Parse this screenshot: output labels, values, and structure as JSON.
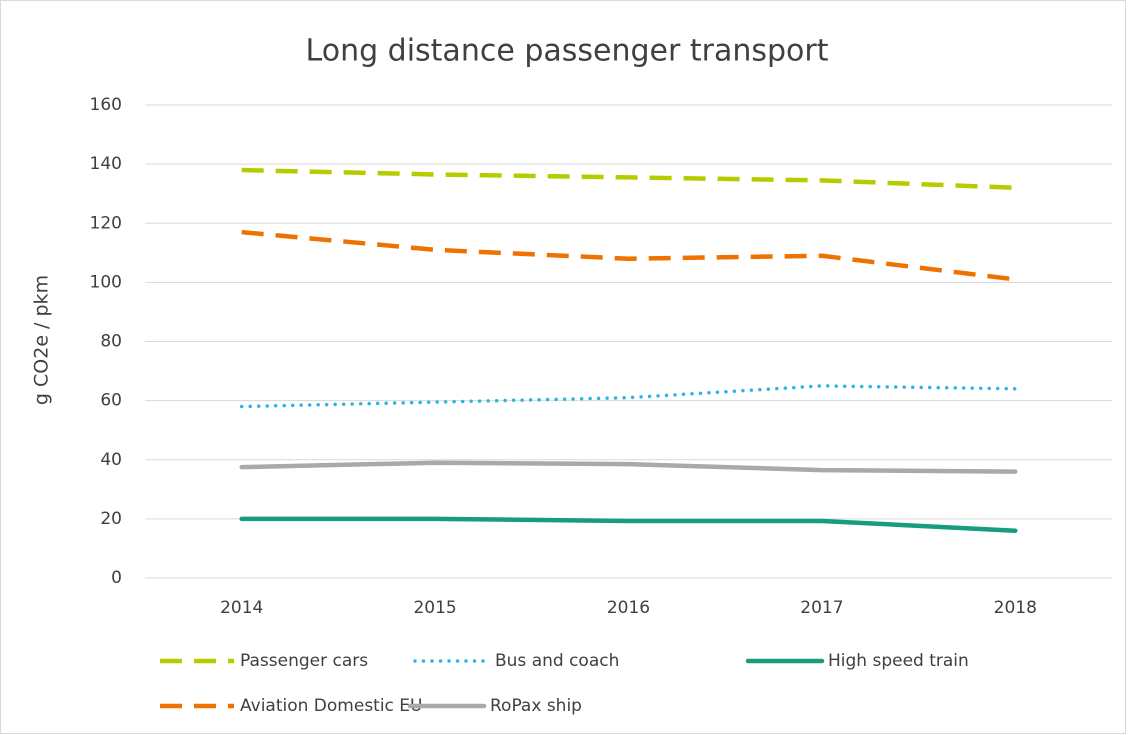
{
  "chart_data": {
    "type": "line",
    "title": "Long distance passenger transport",
    "y_label": "g CO2e / pkm",
    "categories": [
      "2014",
      "2015",
      "2016",
      "2017",
      "2018"
    ],
    "series": [
      {
        "name": "Passenger cars",
        "color": "#b7cc00",
        "dash": "dashed",
        "values": [
          138,
          136.5,
          135.5,
          134.5,
          132
        ]
      },
      {
        "name": "Bus and coach",
        "color": "#2bb5e0",
        "dash": "dotted",
        "values": [
          58,
          59.5,
          61,
          65,
          64
        ]
      },
      {
        "name": "High speed train",
        "color": "#179c7d",
        "dash": "solid",
        "values": [
          20,
          20,
          19.3,
          19.3,
          16
        ]
      },
      {
        "name": "Aviation Domestic EU",
        "color": "#ef7100",
        "dash": "dashed",
        "values": [
          117,
          111,
          108,
          109,
          101
        ]
      },
      {
        "name": "RoPax ship",
        "color": "#a6aaa9",
        "dash": "solid",
        "values": [
          37.5,
          39,
          38.5,
          36.5,
          36
        ]
      }
    ],
    "ylim": [
      0,
      160
    ],
    "yticks": [
      0,
      20,
      40,
      60,
      80,
      100,
      120,
      140,
      160
    ],
    "grid": true,
    "legend": "bottom"
  }
}
